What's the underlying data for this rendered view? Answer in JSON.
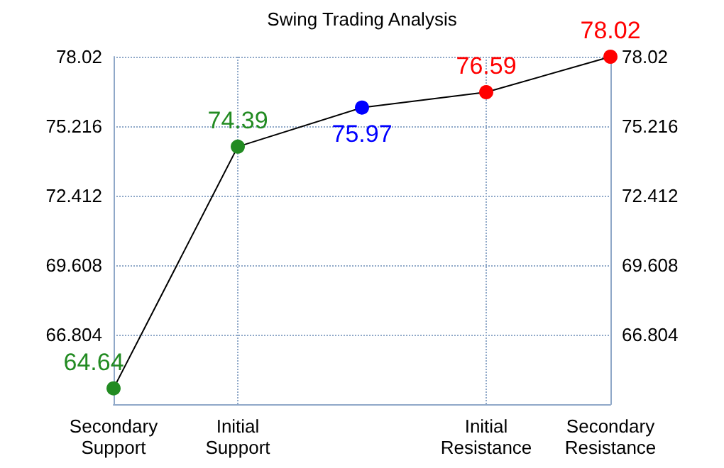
{
  "chart_data": {
    "type": "line",
    "title": "Swing Trading Analysis",
    "categories": [
      "Secondary Support",
      "Initial Support",
      null,
      "Initial Resistance",
      "Secondary Resistance"
    ],
    "values": [
      64.64,
      74.39,
      75.97,
      76.59,
      78.02
    ],
    "colors": [
      "#228b22",
      "#228b22",
      "#0000ff",
      "#ff0000",
      "#ff0000"
    ],
    "color": "#000000",
    "ylim": [
      64,
      78.02
    ],
    "yticks": [
      66.804,
      69.608,
      72.412,
      75.216,
      78.02
    ],
    "y2lim": [
      64,
      78.02
    ],
    "y2ticks": [
      66.804,
      69.608,
      72.412,
      75.216,
      78.02
    ],
    "grid": true,
    "marker": "circle",
    "line_style": "solid",
    "data_labels": true
  }
}
